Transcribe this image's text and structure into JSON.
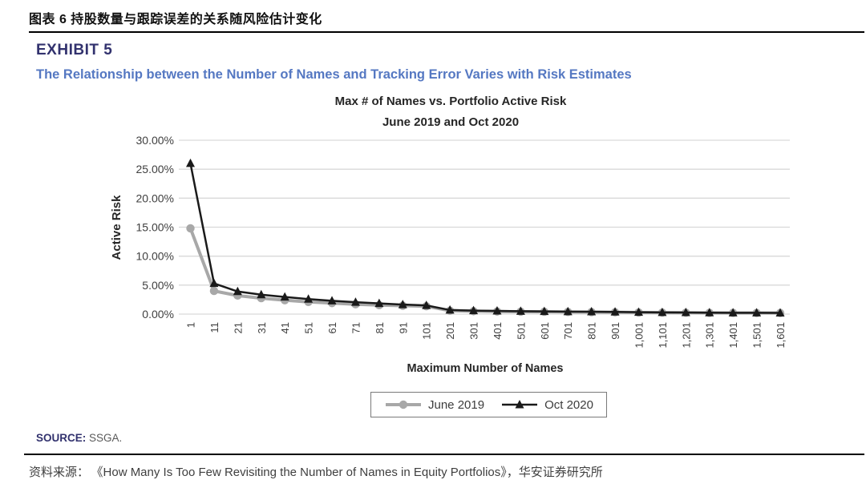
{
  "page": {
    "header_cn": "图表 6  持股数量与跟踪误差的关系随风险估计变化",
    "exhibit_label": "EXHIBIT 5",
    "exhibit_subtitle": "The Relationship between the Number of Names and Tracking Error Varies with Risk Estimates",
    "source_label": "SOURCE:",
    "source_value": "SSGA.",
    "footer_prefix": "资料来源：",
    "footer_text": "《How Many Is Too Few Revisiting the Number of Names in Equity Portfolios》，华安证券研究所"
  },
  "colors": {
    "exhibit_navy": "#32326e",
    "subtitle_blue": "#5578c2",
    "gridline": "#d9d9d9",
    "axis_text": "#3f3f3f",
    "june_gray": "#a8a8a8",
    "oct_black": "#1a1a1a"
  },
  "chart_data": {
    "type": "line",
    "title": "Max # of Names vs. Portfolio Active Risk",
    "subtitle": "June 2019 and Oct 2020",
    "xlabel": "Maximum Number of Names",
    "ylabel": "Active Risk",
    "categories": [
      "1",
      "11",
      "21",
      "31",
      "41",
      "51",
      "61",
      "71",
      "81",
      "91",
      "101",
      "201",
      "301",
      "401",
      "501",
      "601",
      "701",
      "801",
      "901",
      "1,001",
      "1,101",
      "1,201",
      "1,301",
      "1,401",
      "1,501",
      "1,601"
    ],
    "y_ticks": [
      "0.00%",
      "5.00%",
      "10.00%",
      "15.00%",
      "20.00%",
      "25.00%",
      "30.00%"
    ],
    "y_tick_step": 5,
    "ylim": [
      0,
      30
    ],
    "grid": true,
    "legend_position": "bottom",
    "series": [
      {
        "name": "June 2019",
        "color": "#a8a8a8",
        "marker": "circle",
        "line_width": 4,
        "values": [
          14.8,
          4.0,
          3.2,
          2.75,
          2.4,
          2.1,
          1.9,
          1.7,
          1.55,
          1.45,
          1.35,
          0.6,
          0.5,
          0.45,
          0.42,
          0.4,
          0.37,
          0.35,
          0.32,
          0.28,
          0.26,
          0.24,
          0.22,
          0.21,
          0.2,
          0.19
        ]
      },
      {
        "name": "Oct 2020",
        "color": "#1a1a1a",
        "marker": "triangle",
        "line_width": 2.5,
        "values": [
          26.0,
          5.3,
          3.9,
          3.35,
          2.95,
          2.6,
          2.3,
          2.05,
          1.85,
          1.65,
          1.5,
          0.7,
          0.6,
          0.55,
          0.5,
          0.47,
          0.44,
          0.41,
          0.38,
          0.32,
          0.29,
          0.27,
          0.25,
          0.23,
          0.22,
          0.21
        ]
      }
    ]
  }
}
